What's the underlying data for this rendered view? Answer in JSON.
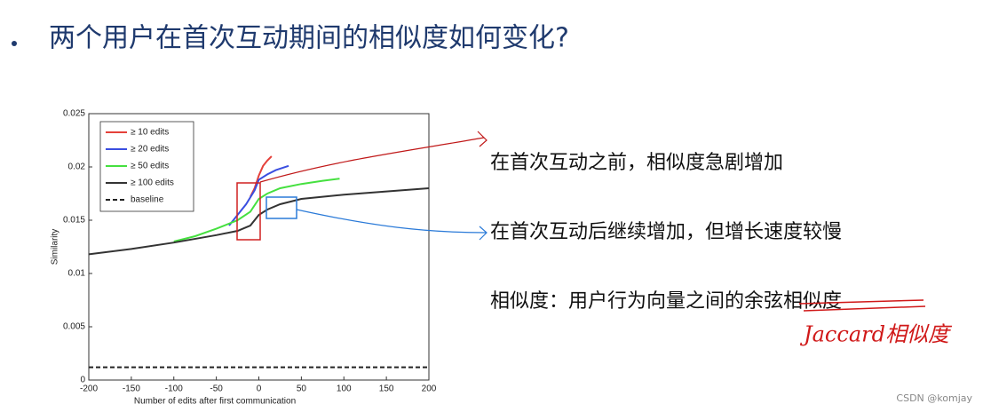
{
  "slide": {
    "title": "两个用户在首次互动期间的相似度如何变化?",
    "notes": [
      "在首次互动之前，相似度急剧增加",
      "在首次互动后继续增加，但增长速度较慢",
      "相似度：用户行为向量之间的余弦相似度"
    ],
    "handwriting": "Jaccard相似度",
    "watermark": "CSDN @komjay"
  },
  "chart_data": {
    "type": "line",
    "xlabel": "Number of edits after first communication",
    "ylabel": "Similarity",
    "xlim": [
      -200,
      200
    ],
    "ylim": [
      0,
      0.025
    ],
    "xticks": [
      -200,
      -150,
      -100,
      -50,
      0,
      50,
      100,
      150,
      200
    ],
    "yticks": [
      0,
      0.005,
      0.01,
      0.015,
      0.02,
      0.025
    ],
    "legend": "upper left",
    "series": [
      {
        "name": "≥ 10 edits",
        "color": "#e5413a",
        "x": [
          -10,
          -5,
          0,
          5,
          10,
          15
        ],
        "values": [
          0.0172,
          0.018,
          0.0192,
          0.0201,
          0.0206,
          0.021
        ]
      },
      {
        "name": "≥ 20 edits",
        "color": "#3a4ee0",
        "x": [
          -35,
          -25,
          -15,
          -5,
          0,
          10,
          20,
          35
        ],
        "values": [
          0.0145,
          0.0155,
          0.0165,
          0.0178,
          0.0188,
          0.0193,
          0.0197,
          0.0201
        ]
      },
      {
        "name": "≥ 50 edits",
        "color": "#45e03f",
        "x": [
          -100,
          -75,
          -50,
          -25,
          -10,
          0,
          10,
          25,
          50,
          75,
          95
        ],
        "values": [
          0.013,
          0.0135,
          0.0142,
          0.015,
          0.0158,
          0.017,
          0.0175,
          0.018,
          0.0184,
          0.0187,
          0.0189
        ]
      },
      {
        "name": "≥ 100 edits",
        "color": "#333333",
        "x": [
          -200,
          -150,
          -100,
          -50,
          -25,
          -10,
          0,
          10,
          25,
          50,
          100,
          150,
          200
        ],
        "values": [
          0.0118,
          0.0123,
          0.0129,
          0.0136,
          0.014,
          0.0145,
          0.0155,
          0.016,
          0.0165,
          0.017,
          0.0174,
          0.0177,
          0.018
        ]
      },
      {
        "name": "baseline",
        "color": "#222222",
        "line_style": "dashed",
        "x": [
          -200,
          200
        ],
        "values": [
          0.0012,
          0.0012
        ]
      }
    ]
  }
}
